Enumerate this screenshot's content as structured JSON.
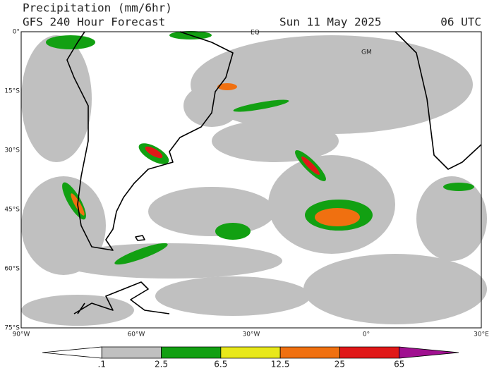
{
  "header": {
    "title": "Precipitation (mm/6hr)",
    "model": "GFS 240 Hour Forecast",
    "date": "Sun 11 May 2025",
    "time": "06 UTC"
  },
  "map": {
    "lat_labels": [
      "0°",
      "15°S",
      "30°S",
      "45°S",
      "60°S",
      "75°S"
    ],
    "lon_labels": [
      "90°W",
      "60°W",
      "30°W",
      "0°",
      "30°E"
    ],
    "markers": [
      "EQ",
      "GM"
    ]
  },
  "colorbar": {
    "labels": [
      ".1",
      "2.5",
      "6.5",
      "12.5",
      "25",
      "65"
    ],
    "colors": [
      "#ffffff",
      "#c0c0c0",
      "#12a012",
      "#e8e81a",
      "#f07010",
      "#e01818",
      "#a01090"
    ]
  }
}
